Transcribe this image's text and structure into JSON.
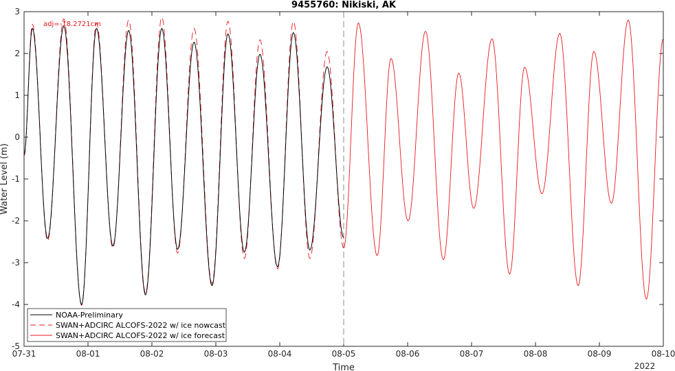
{
  "chart_data": {
    "type": "line",
    "title": "9455760: Nikiski, AK",
    "xlabel": "Time",
    "ylabel": "Water Level (m)",
    "xlim": [
      "2022-07-31T00:00",
      "2022-08-10T00:00"
    ],
    "ylim": [
      -5,
      3
    ],
    "x_tick_labels": [
      "07-31",
      "08-01",
      "08-02",
      "08-03",
      "08-04",
      "08-05",
      "08-06",
      "08-07",
      "08-08",
      "08-09",
      "08-10"
    ],
    "x_tick_dates": [
      "2022-07-31",
      "2022-08-01",
      "2022-08-02",
      "2022-08-03",
      "2022-08-04",
      "2022-08-05",
      "2022-08-06",
      "2022-08-07",
      "2022-08-08",
      "2022-08-09",
      "2022-08-10"
    ],
    "x_year_label": "2022",
    "y_ticks": [
      -5,
      -4,
      -3,
      -2,
      -1,
      0,
      1,
      2,
      3
    ],
    "grid": false,
    "legend_position": "bottom-left",
    "nowcast_end": "2022-08-05T00:00",
    "annotation": "adj=-18.2721cm",
    "colors": {
      "observed": "#000000",
      "model": "#e8161b",
      "divider": "#888888"
    },
    "series": [
      {
        "name": "NOAA-Preliminary",
        "style": "solid",
        "color": "#000000",
        "extrema": [
          [
            "2022-07-31T00:00",
            -0.42
          ],
          [
            "2022-07-31T03:07",
            2.6
          ],
          [
            "2022-07-31T08:50",
            -2.42
          ],
          [
            "2022-07-31T14:55",
            2.65
          ],
          [
            "2022-07-31T21:36",
            -4.0
          ],
          [
            "2022-08-01T03:12",
            2.6
          ],
          [
            "2022-08-01T09:22",
            -2.6
          ],
          [
            "2022-08-01T15:17",
            2.55
          ],
          [
            "2022-08-01T21:36",
            -3.77
          ],
          [
            "2022-08-02T03:43",
            2.6
          ],
          [
            "2022-08-02T09:40",
            -2.68
          ],
          [
            "2022-08-02T15:50",
            2.27
          ],
          [
            "2022-08-02T22:34",
            -3.55
          ],
          [
            "2022-08-03T04:34",
            2.47
          ],
          [
            "2022-08-03T10:43",
            -2.75
          ],
          [
            "2022-08-03T16:34",
            1.98
          ],
          [
            "2022-08-03T23:10",
            -3.1
          ],
          [
            "2022-08-04T05:07",
            2.5
          ],
          [
            "2022-08-04T11:19",
            -2.7
          ],
          [
            "2022-08-04T17:46",
            1.68
          ],
          [
            "2022-08-05T00:00",
            -2.4
          ]
        ]
      },
      {
        "name": "SWAN+ADCIRC ALCOFS-2022 w/ ice nowcast",
        "style": "dashed",
        "color": "#e8161b",
        "extrema": [
          [
            "2022-07-31T00:00",
            -0.45
          ],
          [
            "2022-07-31T03:07",
            2.7
          ],
          [
            "2022-07-31T08:50",
            -2.48
          ],
          [
            "2022-07-31T14:55",
            2.83
          ],
          [
            "2022-07-31T21:36",
            -4.02
          ],
          [
            "2022-08-01T03:12",
            2.72
          ],
          [
            "2022-08-01T09:22",
            -2.65
          ],
          [
            "2022-08-01T15:17",
            2.8
          ],
          [
            "2022-08-01T21:36",
            -3.73
          ],
          [
            "2022-08-02T03:43",
            2.87
          ],
          [
            "2022-08-02T09:40",
            -2.77
          ],
          [
            "2022-08-02T15:50",
            2.6
          ],
          [
            "2022-08-02T22:34",
            -3.5
          ],
          [
            "2022-08-03T04:34",
            2.77
          ],
          [
            "2022-08-03T10:43",
            -2.9
          ],
          [
            "2022-08-03T16:34",
            2.33
          ],
          [
            "2022-08-03T23:10",
            -3.15
          ],
          [
            "2022-08-04T05:07",
            2.77
          ],
          [
            "2022-08-04T11:19",
            -2.9
          ],
          [
            "2022-08-04T17:46",
            2.05
          ],
          [
            "2022-08-05T00:00",
            -2.65
          ]
        ]
      },
      {
        "name": "SWAN+ADCIRC ALCOFS-2022 w/ ice forecast",
        "style": "solid",
        "color": "#e8161b",
        "extrema": [
          [
            "2022-08-05T00:00",
            -2.65
          ],
          [
            "2022-08-05T05:31",
            2.73
          ],
          [
            "2022-08-05T12:34",
            -2.83
          ],
          [
            "2022-08-05T17:46",
            1.88
          ],
          [
            "2022-08-06T00:10",
            -2.0
          ],
          [
            "2022-08-06T06:43",
            2.53
          ],
          [
            "2022-08-06T13:26",
            -2.93
          ],
          [
            "2022-08-06T19:12",
            1.53
          ],
          [
            "2022-08-07T00:48",
            -1.7
          ],
          [
            "2022-08-07T07:41",
            2.35
          ],
          [
            "2022-08-07T14:19",
            -3.27
          ],
          [
            "2022-08-07T19:55",
            1.67
          ],
          [
            "2022-08-08T02:26",
            -1.35
          ],
          [
            "2022-08-08T09:07",
            2.48
          ],
          [
            "2022-08-08T16:02",
            -3.55
          ],
          [
            "2022-08-08T21:55",
            2.05
          ],
          [
            "2022-08-09T04:31",
            -1.58
          ],
          [
            "2022-08-09T10:50",
            2.8
          ],
          [
            "2022-08-09T17:38",
            -3.87
          ],
          [
            "2022-08-10T00:00",
            2.35
          ]
        ]
      }
    ]
  }
}
